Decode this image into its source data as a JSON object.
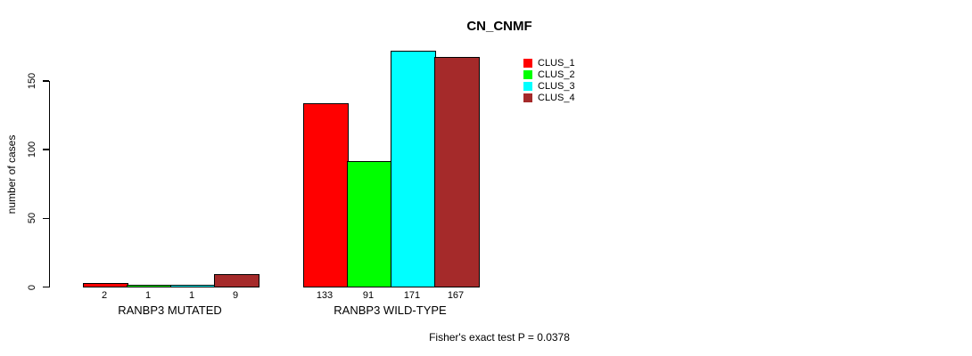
{
  "title": "CN_CNMF",
  "footer": "Fisher's exact test P = 0.0378",
  "colors": {
    "clus1": "#FF0000",
    "clus2": "#00FF00",
    "clus3": "#00FFFF",
    "clus4": "#A52A2A",
    "axis": "#000000",
    "background": "#FFFFFF"
  },
  "chart_data": {
    "type": "bar",
    "title": "CN_CNMF",
    "xlabel": "",
    "ylabel": "number of cases",
    "ylim": [
      0,
      171
    ],
    "yticks": [
      0,
      50,
      100,
      150
    ],
    "grid": false,
    "legend_position": "top-right",
    "categories": [
      "RANBP3 MUTATED",
      "RANBP3 WILD-TYPE"
    ],
    "series": [
      {
        "name": "CLUS_1",
        "color": "#FF0000",
        "values": [
          2,
          133
        ]
      },
      {
        "name": "CLUS_2",
        "color": "#00FF00",
        "values": [
          1,
          91
        ]
      },
      {
        "name": "CLUS_3",
        "color": "#00FFFF",
        "values": [
          1,
          171
        ]
      },
      {
        "name": "CLUS_4",
        "color": "#A52A2A",
        "values": [
          9,
          167
        ]
      }
    ],
    "bar_value_labels": [
      [
        2,
        1,
        1,
        9
      ],
      [
        133,
        91,
        171,
        167
      ]
    ],
    "annotation": "Fisher's exact test P = 0.0378"
  }
}
